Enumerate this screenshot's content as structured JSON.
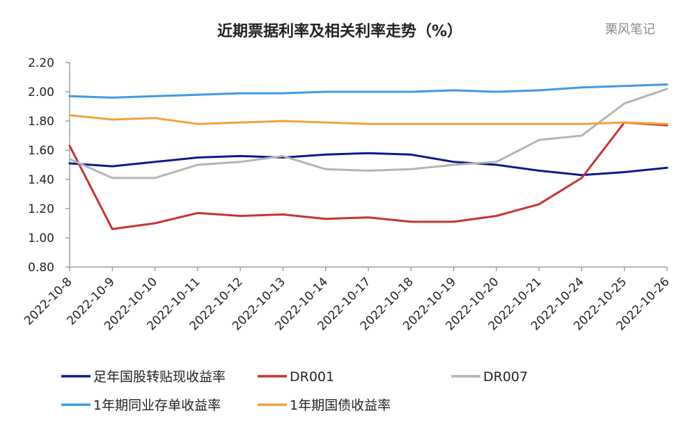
{
  "watermark": "栗风笔记",
  "chart_data": {
    "type": "line",
    "title": "近期票据利率及相关利率走势（%）",
    "xlabel": "",
    "ylabel": "",
    "ylim": [
      0.8,
      2.2
    ],
    "yticks": [
      "0.80",
      "1.00",
      "1.20",
      "1.40",
      "1.60",
      "1.80",
      "2.00",
      "2.20"
    ],
    "grid": false,
    "legend_position": "bottom",
    "categories": [
      "2022-10-8",
      "2022-10-9",
      "2022-10-10",
      "2022-10-11",
      "2022-10-12",
      "2022-10-13",
      "2022-10-14",
      "2022-10-17",
      "2022-10-18",
      "2022-10-19",
      "2022-10-20",
      "2022-10-21",
      "2022-10-24",
      "2022-10-25",
      "2022-10-26"
    ],
    "series": [
      {
        "name": "足年国股转贴现收益率",
        "color": "#0a1a8c",
        "values": [
          1.51,
          1.49,
          1.52,
          1.55,
          1.56,
          1.55,
          1.57,
          1.58,
          1.57,
          1.52,
          1.5,
          1.46,
          1.43,
          1.45,
          1.48
        ]
      },
      {
        "name": "DR001",
        "color": "#c83232",
        "values": [
          1.63,
          1.06,
          1.1,
          1.17,
          1.15,
          1.16,
          1.13,
          1.14,
          1.11,
          1.11,
          1.15,
          1.23,
          1.41,
          1.79,
          1.77
        ]
      },
      {
        "name": "DR007",
        "color": "#b4b4b4",
        "values": [
          1.54,
          1.41,
          1.41,
          1.5,
          1.52,
          1.56,
          1.47,
          1.46,
          1.47,
          1.5,
          1.52,
          1.67,
          1.7,
          1.92,
          2.02
        ]
      },
      {
        "name": "1年期同业存单收益率",
        "color": "#3d9ae8",
        "values": [
          1.97,
          1.96,
          1.97,
          1.98,
          1.99,
          1.99,
          2.0,
          2.0,
          2.0,
          2.01,
          2.0,
          2.01,
          2.03,
          2.04,
          2.05
        ]
      },
      {
        "name": "1年期国债收益率",
        "color": "#f5a03c",
        "values": [
          1.84,
          1.81,
          1.82,
          1.78,
          1.79,
          1.8,
          1.79,
          1.78,
          1.78,
          1.78,
          1.78,
          1.78,
          1.78,
          1.79,
          1.78
        ]
      }
    ]
  }
}
